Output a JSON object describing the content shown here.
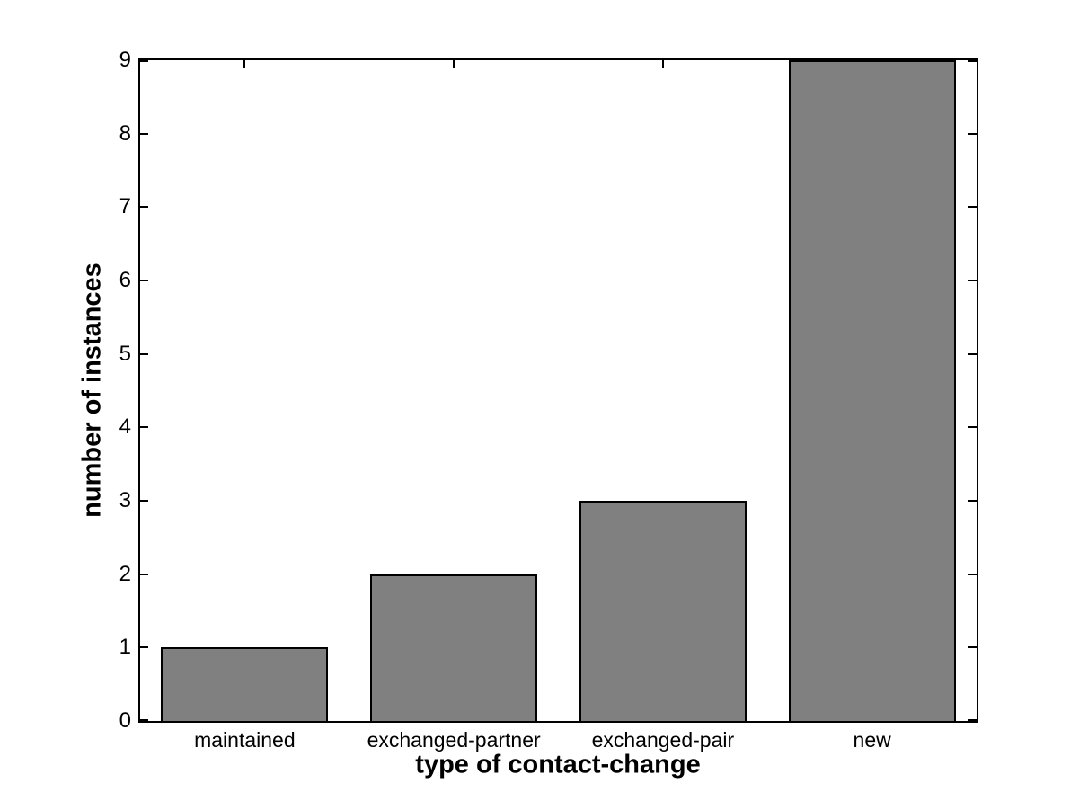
{
  "figure": {
    "background": "#ffffff"
  },
  "chart_data": {
    "type": "bar",
    "categories": [
      "maintained",
      "exchanged-partner",
      "exchanged-pair",
      "new"
    ],
    "values": [
      1,
      2,
      3,
      9
    ],
    "title": "",
    "xlabel": "type of contact-change",
    "ylabel": "number of instances",
    "ylim": [
      0,
      9
    ],
    "yticks": [
      0,
      1,
      2,
      3,
      4,
      5,
      6,
      7,
      8,
      9
    ],
    "bar_width_fraction": 0.8,
    "bar_color": "#808080",
    "bar_edge_color": "#000000",
    "axis_color": "#000000",
    "grid": false,
    "legend": null
  }
}
